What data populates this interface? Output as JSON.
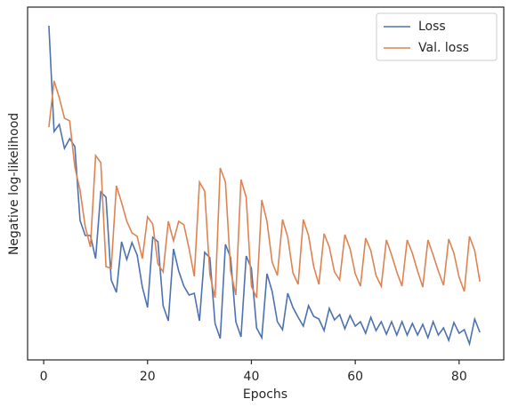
{
  "chart_data": {
    "type": "line",
    "xlabel": "Epochs",
    "ylabel": "Negative log-likelihood",
    "x": [
      1,
      2,
      3,
      4,
      5,
      6,
      7,
      8,
      9,
      10,
      11,
      12,
      13,
      14,
      15,
      16,
      17,
      18,
      19,
      20,
      21,
      22,
      23,
      24,
      25,
      26,
      27,
      28,
      29,
      30,
      31,
      32,
      33,
      34,
      35,
      36,
      37,
      38,
      39,
      40,
      41,
      42,
      43,
      44,
      45,
      46,
      47,
      48,
      49,
      50,
      51,
      52,
      53,
      54,
      55,
      56,
      57,
      58,
      59,
      60,
      61,
      62,
      63,
      64,
      65,
      66,
      67,
      68,
      69,
      70,
      71,
      72,
      73,
      74,
      75,
      76,
      77,
      78,
      79,
      80,
      81,
      82,
      83,
      84
    ],
    "series": [
      {
        "name": "Loss",
        "color": "#4c72b0",
        "values": [
          376,
          257,
          265,
          238,
          249,
          240,
          157,
          140,
          140,
          114,
          189,
          183,
          90,
          76,
          133,
          113,
          132,
          118,
          82,
          59,
          138,
          133,
          61,
          44,
          125,
          100,
          83,
          73,
          75,
          44,
          121,
          115,
          41,
          24,
          130,
          115,
          43,
          26,
          117,
          103,
          36,
          25,
          97,
          77,
          43,
          34,
          75,
          59,
          48,
          38,
          61,
          49,
          46,
          33,
          58,
          45,
          51,
          35,
          50,
          38,
          43,
          30,
          48,
          33,
          43,
          29,
          43,
          28,
          43,
          28,
          41,
          28,
          40,
          25,
          43,
          28,
          36,
          22,
          42,
          30,
          34,
          18,
          46,
          31
        ]
      },
      {
        "name": "Val. loss",
        "color": "#dd8452",
        "values": [
          262,
          314,
          295,
          272,
          269,
          217,
          191,
          150,
          127,
          230,
          222,
          105,
          103,
          196,
          177,
          156,
          143,
          139,
          114,
          161,
          153,
          108,
          99,
          156,
          134,
          156,
          152,
          125,
          94,
          200,
          190,
          96,
          70,
          216,
          200,
          100,
          73,
          203,
          183,
          83,
          70,
          180,
          156,
          110,
          95,
          158,
          138,
          98,
          85,
          158,
          140,
          105,
          85,
          142,
          127,
          99,
          90,
          141,
          125,
          97,
          83,
          137,
          123,
          95,
          83,
          135,
          118,
          99,
          83,
          135,
          120,
          100,
          82,
          135,
          118,
          100,
          84,
          136,
          120,
          93,
          77,
          139,
          123,
          88
        ]
      }
    ],
    "xlim": [
      -3.1,
      88.6
    ],
    "xticks": [
      0,
      20,
      40,
      60,
      80
    ],
    "ylim": [
      0,
      397
    ],
    "legend": "upper right"
  }
}
